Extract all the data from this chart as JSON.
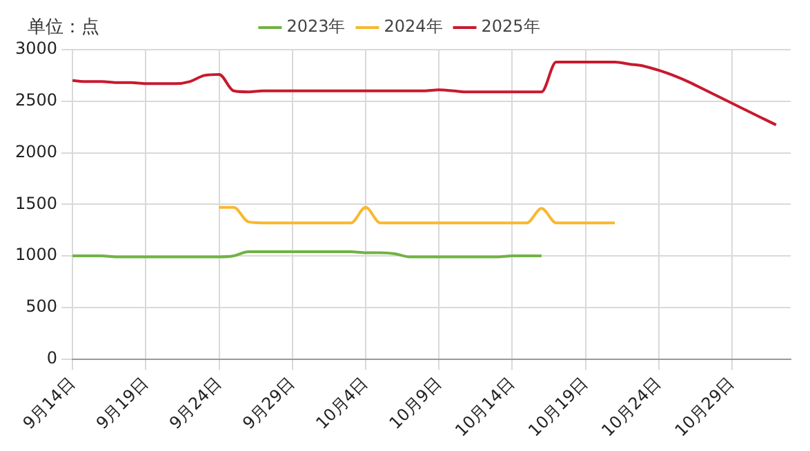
{
  "chart_data": {
    "type": "line",
    "ylabel": "单位：点",
    "categories": [
      "9月14日",
      null,
      null,
      null,
      null,
      "9月19日",
      null,
      null,
      null,
      null,
      "9月24日",
      null,
      null,
      null,
      null,
      "9月29日",
      null,
      null,
      null,
      null,
      "10月4日",
      null,
      null,
      null,
      null,
      "10月9日",
      null,
      null,
      null,
      null,
      "10月14日",
      null,
      null,
      null,
      null,
      "10月19日",
      null,
      null,
      null,
      null,
      "10月24日",
      null,
      null,
      null,
      null,
      "10月29日",
      null,
      null,
      null,
      null
    ],
    "series": [
      {
        "name": "2023年",
        "color": "#70b244",
        "values": [
          1000,
          1000,
          1000,
          990,
          990,
          990,
          990,
          990,
          990,
          990,
          990,
          1000,
          1040,
          1040,
          1040,
          1040,
          1040,
          1040,
          1040,
          1040,
          1030,
          1030,
          1020,
          990,
          990,
          990,
          990,
          990,
          990,
          990,
          1000,
          1000,
          1000,
          null,
          null,
          null,
          null,
          null,
          null,
          null,
          null,
          null,
          null,
          null,
          null,
          null,
          null,
          null,
          null,
          null
        ]
      },
      {
        "name": "2024年",
        "color": "#f8b82e",
        "values": [
          null,
          null,
          null,
          null,
          null,
          null,
          null,
          null,
          null,
          null,
          1470,
          1470,
          1330,
          1320,
          1320,
          1320,
          1320,
          1320,
          1320,
          1320,
          1470,
          1320,
          1320,
          1320,
          1320,
          1320,
          1320,
          1320,
          1320,
          1320,
          1320,
          1320,
          1460,
          1320,
          1320,
          1320,
          1320,
          1320,
          null,
          null,
          null,
          null,
          null,
          null,
          null,
          null,
          null,
          null,
          null,
          null
        ]
      },
      {
        "name": "2025年",
        "color": "#c8192e",
        "values": [
          2700,
          2690,
          2690,
          2680,
          2680,
          2670,
          2670,
          2670,
          2690,
          2750,
          2760,
          2600,
          2590,
          2600,
          2600,
          2600,
          2600,
          2600,
          2600,
          2600,
          2600,
          2600,
          2600,
          2600,
          2600,
          2610,
          2600,
          2590,
          2590,
          2590,
          2590,
          2590,
          2590,
          2880,
          2880,
          2880,
          2880,
          2880,
          2860,
          2840,
          2800,
          2750,
          2690,
          2620,
          2550,
          2480,
          2410,
          2340,
          2270,
          null
        ]
      }
    ],
    "ylim": [
      0,
      3000
    ],
    "yticks": [
      0,
      500,
      1000,
      1500,
      2000,
      2500,
      3000
    ],
    "grid": true,
    "legend": "top",
    "marker": "none"
  }
}
